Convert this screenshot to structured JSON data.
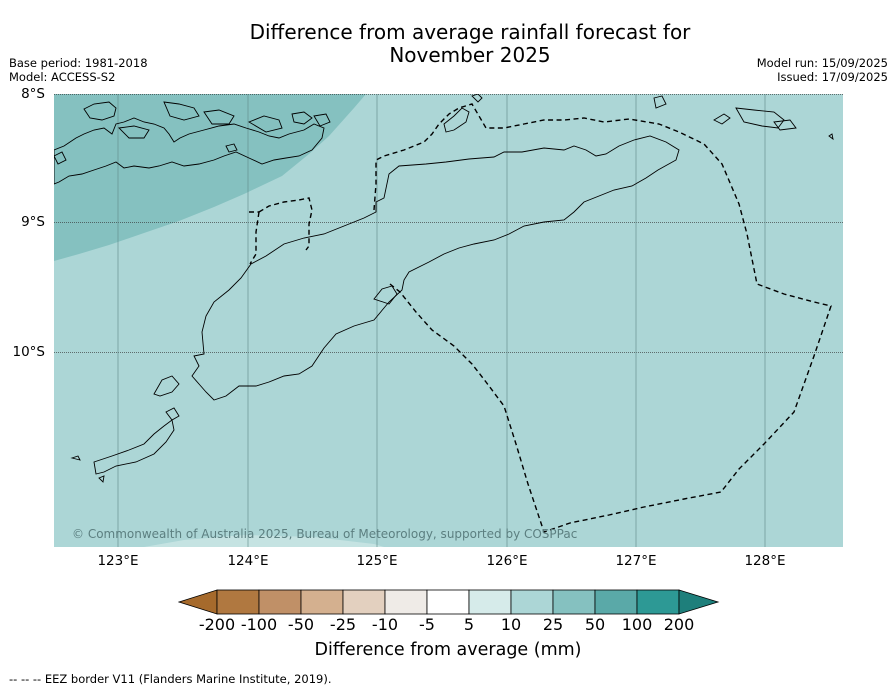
{
  "title_line1": "Difference from average rainfall forecast for",
  "title_line2": "November 2025",
  "meta_left": {
    "base_period": "Base period: 1981-2018",
    "model": "Model: ACCESS-S2"
  },
  "meta_right": {
    "model_run": "Model run: 15/09/2025",
    "issued": "Issued: 17/09/2025"
  },
  "map": {
    "lat_ticks": [
      "8°S",
      "9°S",
      "10°S"
    ],
    "lon_ticks": [
      "123°E",
      "124°E",
      "125°E",
      "126°E",
      "127°E",
      "128°E"
    ],
    "extent": {
      "lon_min": 122.5,
      "lon_max": 128.6,
      "lat_min": -11.5,
      "lat_max": -8.0
    },
    "copyright": "© Commonwealth of Australia 2025, Bureau of Meteorology, supported by COSPPac",
    "colors": {
      "ocean_10_25": "#acd6d6",
      "band_25_50": "#85c1c0",
      "coast": "#000000",
      "eez_border": "#000000"
    }
  },
  "colorbar": {
    "title": "Difference from average (mm)",
    "labels": [
      "-200",
      "-100",
      "-50",
      "-25",
      "-10",
      "-5",
      "5",
      "10",
      "25",
      "50",
      "100",
      "200"
    ],
    "colors": [
      "#a66a2c",
      "#b07840",
      "#c09067",
      "#d4b08f",
      "#e3d0bf",
      "#efebe7",
      "#ffffff",
      "#d6ebea",
      "#acd6d6",
      "#85c1c0",
      "#5aa9a8",
      "#2d9995",
      "#1e7f7b"
    ]
  },
  "footnote": "-- -- -- EEZ border V11 (Flanders Marine Institute, 2019)."
}
